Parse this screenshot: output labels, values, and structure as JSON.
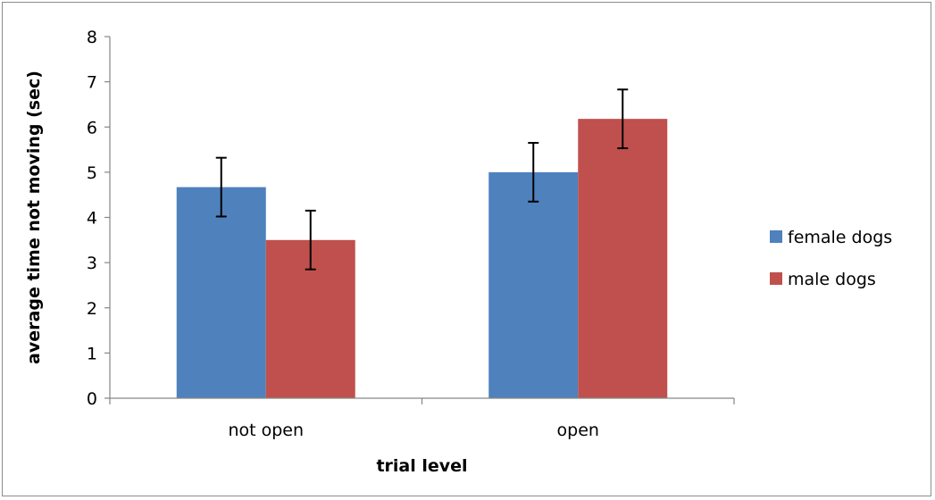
{
  "chart_data": {
    "type": "bar",
    "title": "",
    "xlabel": "trial level",
    "ylabel": "average time not moving (sec)",
    "categories": [
      "not open",
      "open"
    ],
    "ylim": [
      0,
      8
    ],
    "yticks": [
      0,
      1,
      2,
      3,
      4,
      5,
      6,
      7,
      8
    ],
    "grid": false,
    "legend_position": "right",
    "series": [
      {
        "name": "female dogs",
        "color": "#4f81bd",
        "values": [
          4.67,
          5.0
        ],
        "error": [
          0.65,
          0.65
        ]
      },
      {
        "name": "male dogs",
        "color": "#c0504d",
        "values": [
          3.5,
          6.18
        ],
        "error": [
          0.65,
          0.65
        ]
      }
    ]
  }
}
